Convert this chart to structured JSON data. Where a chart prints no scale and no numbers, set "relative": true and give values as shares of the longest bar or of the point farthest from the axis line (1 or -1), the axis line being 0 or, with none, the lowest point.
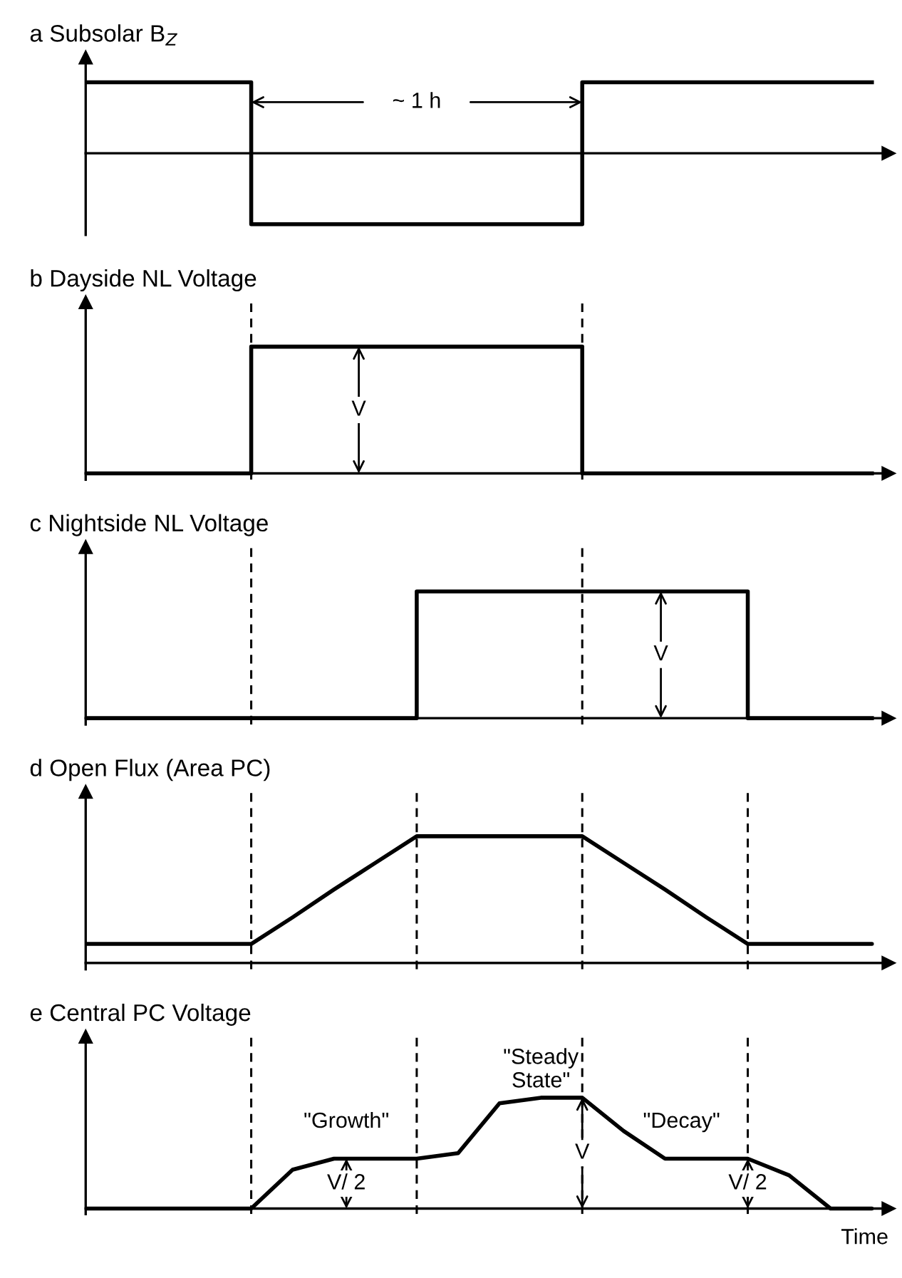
{
  "chart_data": [
    {
      "type": "step",
      "title": "a Subsolar B$_{Z}$",
      "relative": true,
      "color": "#000000",
      "categories": [
        null,
        null,
        null,
        null,
        null,
        null,
        null,
        null,
        null,
        null,
        null,
        null,
        null,
        null,
        null,
        null,
        null,
        null,
        null,
        null
      ],
      "values": [
        1,
        1,
        1,
        1,
        -1,
        -1,
        -1,
        -1,
        -1,
        -1,
        -1,
        -1,
        1,
        1,
        1,
        1,
        1,
        1,
        1,
        1
      ],
      "annotations": [
        "~ 1 h"
      ]
    },
    {
      "type": "step",
      "title": "b Dayside NL Voltage",
      "relative": true,
      "color": "#000000",
      "grid": "x",
      "categories": [
        null,
        null,
        null,
        null,
        null,
        null,
        null,
        null,
        null,
        null,
        null,
        null,
        null,
        null,
        null,
        null,
        null,
        null,
        null,
        null
      ],
      "values": [
        0,
        0,
        0,
        0,
        1,
        1,
        1,
        1,
        1,
        1,
        1,
        1,
        0,
        0,
        0,
        0,
        0,
        0,
        0,
        0
      ],
      "annotations": [
        "V"
      ]
    },
    {
      "type": "step",
      "title": "c Nightside NL Voltage",
      "relative": true,
      "color": "#000000",
      "grid": "x",
      "categories": [
        null,
        null,
        null,
        null,
        null,
        null,
        null,
        null,
        null,
        null,
        null,
        null,
        null,
        null,
        null,
        null,
        null,
        null,
        null,
        null
      ],
      "values": [
        0,
        0,
        0,
        0,
        0,
        0,
        0,
        0,
        1,
        1,
        1,
        1,
        1,
        1,
        1,
        1,
        0,
        0,
        0,
        0
      ],
      "annotations": [
        "V"
      ]
    },
    {
      "type": "line",
      "title": "d Open Flux (Area PC)",
      "relative": true,
      "color": "#000000",
      "grid": "x",
      "categories": [
        null,
        null,
        null,
        null,
        null,
        null,
        null,
        null,
        null,
        null,
        null,
        null,
        null,
        null,
        null,
        null,
        null,
        null,
        null,
        null
      ],
      "values": [
        0.15,
        0.15,
        0.15,
        0.15,
        0.15,
        0.36,
        0.58,
        0.79,
        1,
        1,
        1,
        1,
        1,
        0.79,
        0.58,
        0.36,
        0.15,
        0.15,
        0.15,
        0.15
      ]
    },
    {
      "type": "line",
      "title": "e Central PC Voltage",
      "xlabel": "Time",
      "relative": true,
      "color": "#000000",
      "grid": "x",
      "categories": [
        null,
        null,
        null,
        null,
        null,
        null,
        null,
        null,
        null,
        null,
        null,
        null,
        null,
        null,
        null,
        null,
        null,
        null,
        null,
        null
      ],
      "values": [
        0,
        0,
        0,
        0,
        0,
        0.35,
        0.45,
        0.45,
        0.45,
        0.5,
        0.95,
        1,
        1,
        0.7,
        0.45,
        0.45,
        0.45,
        0.3,
        0,
        0
      ],
      "annotations": [
        "\"Growth\"",
        "\"Steady\nState\"",
        "\"Decay\"",
        "V",
        "V/ 2",
        "V/ 2"
      ]
    }
  ]
}
